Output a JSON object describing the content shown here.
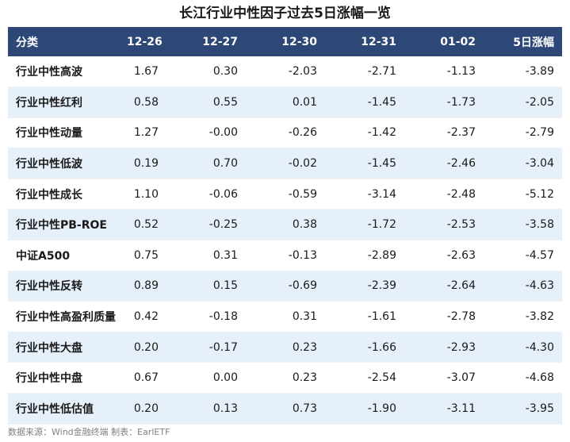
{
  "title": "长江行业中性因子过去5日涨幅一览",
  "table": {
    "headers": [
      "分类",
      "12-26",
      "12-27",
      "12-30",
      "12-31",
      "01-02",
      "5日涨幅"
    ],
    "rows": [
      [
        "行业中性高波",
        "1.67",
        "0.30",
        "-2.03",
        "-2.71",
        "-1.13",
        "-3.89"
      ],
      [
        "行业中性红利",
        "0.58",
        "0.55",
        "0.01",
        "-1.45",
        "-1.73",
        "-2.05"
      ],
      [
        "行业中性动量",
        "1.27",
        "-0.00",
        "-0.26",
        "-1.42",
        "-2.37",
        "-2.79"
      ],
      [
        "行业中性低波",
        "0.19",
        "0.70",
        "-0.02",
        "-1.45",
        "-2.46",
        "-3.04"
      ],
      [
        "行业中性成长",
        "1.10",
        "-0.06",
        "-0.59",
        "-3.14",
        "-2.48",
        "-5.12"
      ],
      [
        "行业中性PB-ROE",
        "0.52",
        "-0.25",
        "0.38",
        "-1.72",
        "-2.53",
        "-3.58"
      ],
      [
        "中证A500",
        "0.75",
        "0.31",
        "-0.13",
        "-2.89",
        "-2.63",
        "-4.57"
      ],
      [
        "行业中性反转",
        "0.89",
        "0.15",
        "-0.69",
        "-2.39",
        "-2.64",
        "-4.63"
      ],
      [
        "行业中性高盈利质量",
        "0.42",
        "-0.18",
        "0.31",
        "-1.61",
        "-2.78",
        "-3.82"
      ],
      [
        "行业中性大盘",
        "0.20",
        "-0.17",
        "0.23",
        "-1.66",
        "-2.93",
        "-4.30"
      ],
      [
        "行业中性中盘",
        "0.67",
        "0.00",
        "0.23",
        "-2.54",
        "-3.07",
        "-4.68"
      ],
      [
        "行业中性低估值",
        "0.20",
        "0.13",
        "0.73",
        "-1.90",
        "-3.11",
        "-3.95"
      ]
    ]
  },
  "footer": "数据来源：Wind金融终端 制表：EarlETF",
  "colors": {
    "header_bg": "#2d4877",
    "stripe_bg": "#e6f0fa"
  }
}
